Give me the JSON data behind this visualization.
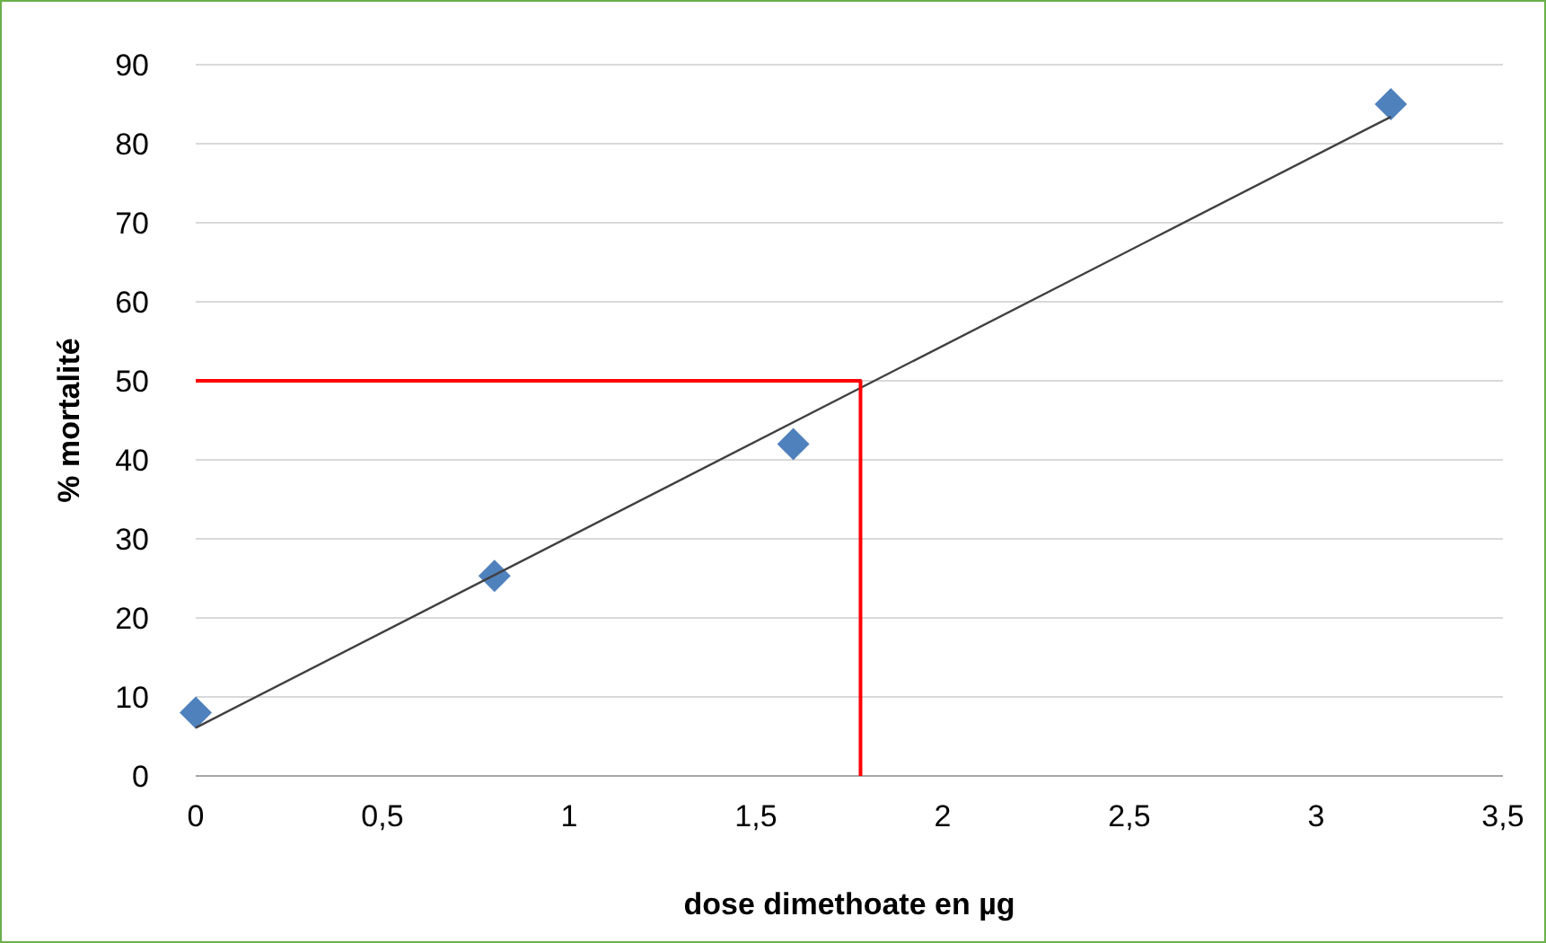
{
  "chart_data": {
    "type": "scatter",
    "xlabel": "dose dimethoate en µg",
    "ylabel": "% mortalité",
    "xlim": [
      0,
      3.5
    ],
    "ylim": [
      0,
      90
    ],
    "xticks": [
      0,
      {
        "value": 0.5,
        "label": "0,5"
      },
      1,
      {
        "value": 1.5,
        "label": "1,5"
      },
      2,
      {
        "value": 2.5,
        "label": "2,5"
      },
      3,
      {
        "value": 3.5,
        "label": "3,5"
      }
    ],
    "yticks": [
      0,
      10,
      20,
      30,
      40,
      50,
      60,
      70,
      80,
      90
    ],
    "grid": "y",
    "series": [
      {
        "color": "#4f81bd",
        "marker": "diamond",
        "x": [
          0,
          0.8,
          1.6,
          3.2
        ],
        "values": [
          8,
          25.3,
          42,
          85
        ]
      },
      {
        "type": "line",
        "color": "#404040",
        "marker": "none",
        "x": [
          0,
          3.2
        ],
        "values": [
          6.1,
          83.4
        ]
      },
      {
        "type": "line",
        "color": "#ff0000",
        "marker": "none",
        "x": [
          0,
          1.78,
          1.78
        ],
        "values": [
          50,
          50,
          0
        ]
      }
    ]
  }
}
